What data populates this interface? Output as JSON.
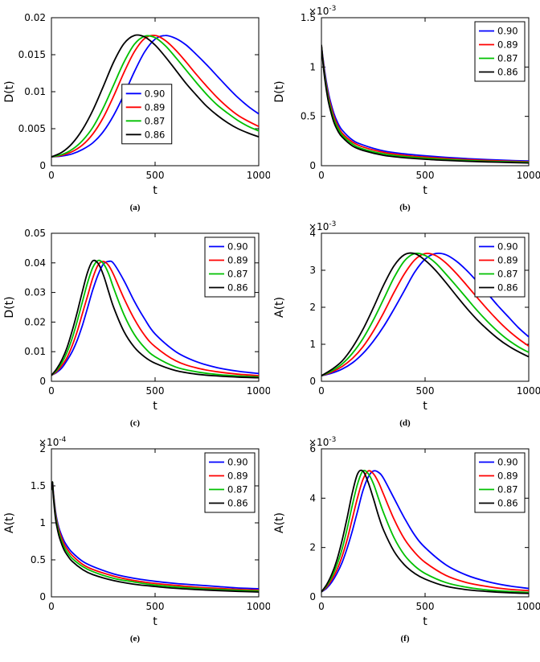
{
  "figure": {
    "background": "#ffffff",
    "line_colors": {
      "0.90": "#0000ff",
      "0.89": "#ff0000",
      "0.87": "#00c000",
      "0.86": "#000000"
    }
  },
  "chart_data": [
    {
      "id": "a",
      "type": "line",
      "caption": "(a)",
      "ylabel": "D(t)",
      "xlabel": "t",
      "xlim": [
        0,
        1000
      ],
      "ylim": [
        0,
        0.02
      ],
      "xticks": [
        0,
        500,
        1000
      ],
      "xtick_labels": [
        "0",
        "500",
        "1000"
      ],
      "yticks": [
        0,
        0.005,
        0.01,
        0.015,
        0.02
      ],
      "ytick_labels": [
        "0",
        "0.005",
        "0.01",
        "0.015",
        "0.02"
      ],
      "y_exponent": "",
      "legend_pos": "center",
      "x": [
        0,
        50,
        100,
        150,
        200,
        250,
        300,
        350,
        400,
        450,
        500,
        550,
        600,
        650,
        700,
        750,
        800,
        850,
        900,
        950,
        1000
      ],
      "series": [
        {
          "name": "0.90",
          "color": "#0000ff",
          "values": [
            0.0012,
            0.0013,
            0.0016,
            0.0022,
            0.0031,
            0.0046,
            0.0068,
            0.0096,
            0.0127,
            0.0154,
            0.0171,
            0.0176,
            0.0172,
            0.0163,
            0.015,
            0.0136,
            0.0121,
            0.0106,
            0.0092,
            0.008,
            0.007
          ]
        },
        {
          "name": "0.89",
          "color": "#ff0000",
          "values": [
            0.0012,
            0.0014,
            0.0019,
            0.0028,
            0.0043,
            0.0065,
            0.0094,
            0.0126,
            0.0154,
            0.0172,
            0.0176,
            0.0169,
            0.0156,
            0.014,
            0.0123,
            0.0107,
            0.0092,
            0.0079,
            0.0068,
            0.006,
            0.0053
          ]
        },
        {
          "name": "0.87",
          "color": "#00c000",
          "values": [
            0.0012,
            0.0015,
            0.0022,
            0.0034,
            0.0052,
            0.0078,
            0.0109,
            0.014,
            0.0164,
            0.0175,
            0.0173,
            0.0162,
            0.0146,
            0.0129,
            0.0112,
            0.0096,
            0.0082,
            0.0071,
            0.0061,
            0.0053,
            0.0047
          ]
        },
        {
          "name": "0.86",
          "color": "#000000",
          "values": [
            0.0012,
            0.0018,
            0.003,
            0.0049,
            0.0075,
            0.0107,
            0.014,
            0.0165,
            0.0176,
            0.0174,
            0.0163,
            0.0147,
            0.0129,
            0.0111,
            0.0095,
            0.008,
            0.0068,
            0.0058,
            0.005,
            0.0044,
            0.0039
          ]
        }
      ]
    },
    {
      "id": "b",
      "type": "line",
      "caption": "(b)",
      "ylabel": "D(t)",
      "xlabel": "t",
      "xlim": [
        0,
        1000
      ],
      "ylim": [
        0,
        1.5
      ],
      "xticks": [
        0,
        500,
        1000
      ],
      "xtick_labels": [
        "0",
        "500",
        "1000"
      ],
      "yticks": [
        0,
        0.5,
        1,
        1.5
      ],
      "ytick_labels": [
        "0",
        "0.5",
        "1",
        "1.5"
      ],
      "y_exponent": "-3",
      "legend_pos": "ne",
      "x": [
        0,
        10,
        20,
        30,
        40,
        60,
        80,
        100,
        150,
        200,
        300,
        400,
        500,
        600,
        700,
        800,
        900,
        1000
      ],
      "series": [
        {
          "name": "0.90",
          "color": "#0000ff",
          "values": [
            1.22,
            1.05,
            0.9,
            0.78,
            0.68,
            0.53,
            0.43,
            0.36,
            0.26,
            0.21,
            0.15,
            0.12,
            0.1,
            0.085,
            0.072,
            0.062,
            0.054,
            0.047
          ]
        },
        {
          "name": "0.89",
          "color": "#ff0000",
          "values": [
            1.22,
            1.03,
            0.87,
            0.75,
            0.65,
            0.5,
            0.4,
            0.33,
            0.24,
            0.19,
            0.135,
            0.105,
            0.087,
            0.073,
            0.062,
            0.053,
            0.046,
            0.04
          ]
        },
        {
          "name": "0.87",
          "color": "#00c000",
          "values": [
            1.22,
            1.01,
            0.85,
            0.72,
            0.62,
            0.47,
            0.38,
            0.31,
            0.22,
            0.17,
            0.12,
            0.093,
            0.076,
            0.063,
            0.053,
            0.045,
            0.039,
            0.034
          ]
        },
        {
          "name": "0.86",
          "color": "#000000",
          "values": [
            1.22,
            0.99,
            0.82,
            0.69,
            0.59,
            0.44,
            0.35,
            0.29,
            0.2,
            0.155,
            0.105,
            0.081,
            0.065,
            0.054,
            0.045,
            0.038,
            0.033,
            0.028
          ]
        }
      ]
    },
    {
      "id": "c",
      "type": "line",
      "caption": "(c)",
      "ylabel": "D(t)",
      "xlabel": "t",
      "xlim": [
        0,
        1000
      ],
      "ylim": [
        0,
        0.05
      ],
      "xticks": [
        0,
        500,
        1000
      ],
      "xtick_labels": [
        "0",
        "500",
        "1000"
      ],
      "yticks": [
        0,
        0.01,
        0.02,
        0.03,
        0.04,
        0.05
      ],
      "ytick_labels": [
        "0",
        "0.01",
        "0.02",
        "0.03",
        "0.04",
        "0.05"
      ],
      "y_exponent": "",
      "legend_pos": "ne",
      "x": [
        0,
        25,
        50,
        75,
        100,
        125,
        150,
        175,
        200,
        225,
        250,
        275,
        300,
        350,
        400,
        450,
        500,
        600,
        700,
        800,
        900,
        1000
      ],
      "series": [
        {
          "name": "0.90",
          "color": "#0000ff",
          "values": [
            0.002,
            0.003,
            0.0045,
            0.007,
            0.01,
            0.014,
            0.019,
            0.025,
            0.031,
            0.036,
            0.0395,
            0.0405,
            0.0398,
            0.034,
            0.027,
            0.021,
            0.016,
            0.01,
            0.0066,
            0.0046,
            0.0034,
            0.0026
          ]
        },
        {
          "name": "0.89",
          "color": "#ff0000",
          "values": [
            0.002,
            0.0033,
            0.0053,
            0.008,
            0.012,
            0.017,
            0.023,
            0.029,
            0.035,
            0.0393,
            0.0405,
            0.0392,
            0.036,
            0.028,
            0.021,
            0.0155,
            0.0117,
            0.0069,
            0.0045,
            0.0032,
            0.0024,
            0.0019
          ]
        },
        {
          "name": "0.87",
          "color": "#00c000",
          "values": [
            0.002,
            0.0037,
            0.0062,
            0.0097,
            0.0145,
            0.0205,
            0.027,
            0.0335,
            0.0385,
            0.0408,
            0.0398,
            0.0365,
            0.0315,
            0.0225,
            0.0158,
            0.0113,
            0.0083,
            0.0048,
            0.0032,
            0.0023,
            0.0018,
            0.0015
          ]
        },
        {
          "name": "0.86",
          "color": "#000000",
          "values": [
            0.002,
            0.0042,
            0.0072,
            0.0113,
            0.017,
            0.0235,
            0.0305,
            0.037,
            0.0407,
            0.0398,
            0.036,
            0.0305,
            0.025,
            0.0168,
            0.0115,
            0.0082,
            0.0061,
            0.0036,
            0.0024,
            0.0018,
            0.0014,
            0.0012
          ]
        }
      ]
    },
    {
      "id": "d",
      "type": "line",
      "caption": "(d)",
      "ylabel": "A(t)",
      "xlabel": "t",
      "xlim": [
        0,
        1000
      ],
      "ylim": [
        0,
        4
      ],
      "xticks": [
        0,
        500,
        1000
      ],
      "xtick_labels": [
        "0",
        "500",
        "1000"
      ],
      "yticks": [
        0,
        1,
        2,
        3,
        4
      ],
      "ytick_labels": [
        "0",
        "1",
        "2",
        "3",
        "4"
      ],
      "y_exponent": "-3",
      "legend_pos": "ne",
      "x": [
        0,
        50,
        100,
        150,
        200,
        250,
        300,
        350,
        400,
        450,
        500,
        550,
        600,
        650,
        700,
        750,
        800,
        850,
        900,
        950,
        1000
      ],
      "series": [
        {
          "name": "0.90",
          "color": "#0000ff",
          "values": [
            0.15,
            0.22,
            0.33,
            0.5,
            0.75,
            1.08,
            1.48,
            1.95,
            2.45,
            2.95,
            3.3,
            3.45,
            3.42,
            3.25,
            3.0,
            2.7,
            2.38,
            2.05,
            1.75,
            1.45,
            1.2
          ]
        },
        {
          "name": "0.89",
          "color": "#ff0000",
          "values": [
            0.15,
            0.25,
            0.4,
            0.62,
            0.93,
            1.35,
            1.85,
            2.4,
            2.9,
            3.28,
            3.45,
            3.4,
            3.2,
            2.92,
            2.6,
            2.27,
            1.95,
            1.65,
            1.38,
            1.15,
            0.95
          ]
        },
        {
          "name": "0.87",
          "color": "#00c000",
          "values": [
            0.15,
            0.28,
            0.47,
            0.76,
            1.15,
            1.65,
            2.22,
            2.8,
            3.25,
            3.45,
            3.4,
            3.2,
            2.9,
            2.58,
            2.25,
            1.92,
            1.62,
            1.35,
            1.12,
            0.93,
            0.78
          ]
        },
        {
          "name": "0.86",
          "color": "#000000",
          "values": [
            0.15,
            0.32,
            0.55,
            0.92,
            1.4,
            1.98,
            2.6,
            3.12,
            3.42,
            3.45,
            3.27,
            3.0,
            2.67,
            2.32,
            1.98,
            1.67,
            1.4,
            1.16,
            0.96,
            0.8,
            0.66
          ]
        }
      ]
    },
    {
      "id": "e",
      "type": "line",
      "caption": "(e)",
      "ylabel": "A(t)",
      "xlabel": "t",
      "xlim": [
        0,
        1000
      ],
      "ylim": [
        0,
        2
      ],
      "xticks": [
        0,
        500,
        1000
      ],
      "xtick_labels": [
        "0",
        "500",
        "1000"
      ],
      "yticks": [
        0,
        0.5,
        1,
        1.5,
        2
      ],
      "ytick_labels": [
        "0",
        "0.5",
        "1",
        "1.5",
        "2"
      ],
      "y_exponent": "-4",
      "legend_pos": "ne",
      "x": [
        0,
        5,
        10,
        20,
        30,
        40,
        60,
        80,
        100,
        150,
        200,
        300,
        400,
        500,
        600,
        700,
        800,
        900,
        1000
      ],
      "series": [
        {
          "name": "0.90",
          "color": "#0000ff",
          "values": [
            1.45,
            1.55,
            1.4,
            1.15,
            1.0,
            0.9,
            0.76,
            0.67,
            0.6,
            0.48,
            0.41,
            0.31,
            0.25,
            0.21,
            0.18,
            0.16,
            0.14,
            0.12,
            0.11
          ]
        },
        {
          "name": "0.89",
          "color": "#ff0000",
          "values": [
            1.45,
            1.55,
            1.38,
            1.12,
            0.97,
            0.87,
            0.72,
            0.63,
            0.56,
            0.44,
            0.37,
            0.28,
            0.22,
            0.18,
            0.155,
            0.13,
            0.115,
            0.1,
            0.09
          ]
        },
        {
          "name": "0.87",
          "color": "#00c000",
          "values": [
            1.45,
            1.55,
            1.36,
            1.09,
            0.94,
            0.83,
            0.68,
            0.59,
            0.52,
            0.41,
            0.34,
            0.25,
            0.2,
            0.16,
            0.135,
            0.115,
            0.1,
            0.088,
            0.078
          ]
        },
        {
          "name": "0.86",
          "color": "#000000",
          "values": [
            1.45,
            1.55,
            1.33,
            1.05,
            0.9,
            0.79,
            0.64,
            0.55,
            0.48,
            0.37,
            0.3,
            0.22,
            0.17,
            0.14,
            0.115,
            0.098,
            0.085,
            0.074,
            0.065
          ]
        }
      ]
    },
    {
      "id": "f",
      "type": "line",
      "caption": "(f)",
      "ylabel": "A(t)",
      "xlabel": "t",
      "xlim": [
        0,
        1000
      ],
      "ylim": [
        0,
        6
      ],
      "xticks": [
        0,
        500,
        1000
      ],
      "xtick_labels": [
        "0",
        "500",
        "1000"
      ],
      "yticks": [
        0,
        2,
        4,
        6
      ],
      "ytick_labels": [
        "0",
        "2",
        "4",
        "6"
      ],
      "y_exponent": "-3",
      "legend_pos": "ne",
      "x": [
        0,
        25,
        50,
        75,
        100,
        125,
        150,
        175,
        200,
        225,
        250,
        275,
        300,
        350,
        400,
        450,
        500,
        600,
        700,
        800,
        900,
        1000
      ],
      "series": [
        {
          "name": "0.90",
          "color": "#0000ff",
          "values": [
            0.2,
            0.35,
            0.6,
            0.95,
            1.4,
            2.0,
            2.7,
            3.5,
            4.3,
            4.85,
            5.1,
            5.05,
            4.8,
            4.0,
            3.2,
            2.5,
            2.0,
            1.3,
            0.88,
            0.62,
            0.45,
            0.34
          ]
        },
        {
          "name": "0.89",
          "color": "#ff0000",
          "values": [
            0.2,
            0.4,
            0.7,
            1.1,
            1.65,
            2.35,
            3.2,
            4.05,
            4.75,
            5.1,
            5.0,
            4.65,
            4.15,
            3.15,
            2.35,
            1.8,
            1.4,
            0.87,
            0.58,
            0.42,
            0.31,
            0.25
          ]
        },
        {
          "name": "0.87",
          "color": "#00c000",
          "values": [
            0.2,
            0.45,
            0.8,
            1.3,
            1.95,
            2.8,
            3.75,
            4.6,
            5.1,
            5.0,
            4.6,
            4.0,
            3.4,
            2.4,
            1.7,
            1.25,
            0.95,
            0.58,
            0.39,
            0.28,
            0.22,
            0.18
          ]
        },
        {
          "name": "0.86",
          "color": "#000000",
          "values": [
            0.2,
            0.5,
            0.92,
            1.5,
            2.3,
            3.25,
            4.25,
            5.0,
            5.1,
            4.65,
            4.0,
            3.3,
            2.7,
            1.85,
            1.3,
            0.95,
            0.72,
            0.43,
            0.29,
            0.22,
            0.17,
            0.14
          ]
        }
      ]
    }
  ]
}
